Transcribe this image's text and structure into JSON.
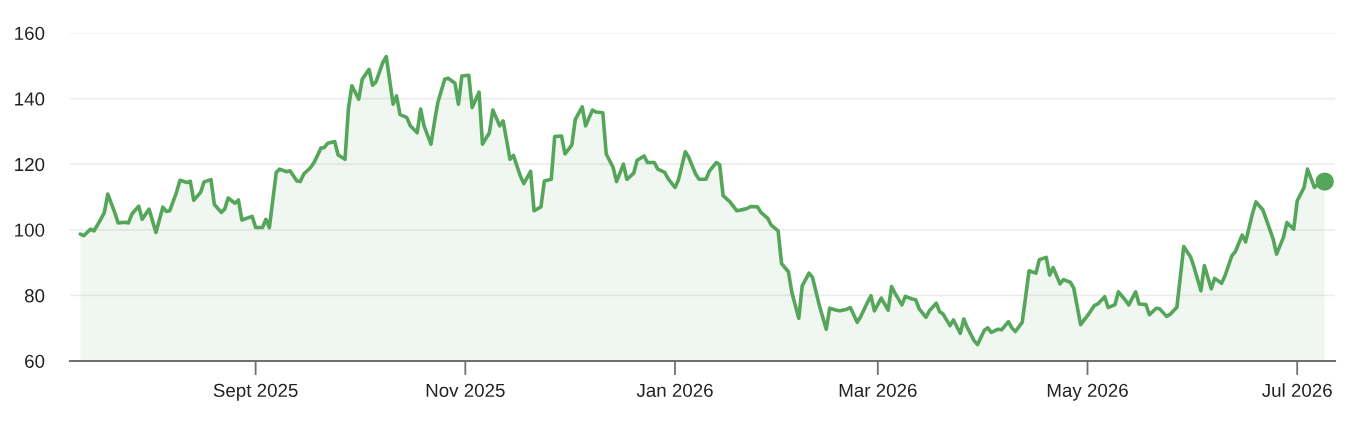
{
  "chart_data": {
    "type": "area",
    "x": [
      "2025-07-12",
      "2025-07-13",
      "2025-07-15",
      "2025-07-16",
      "2025-07-18",
      "2025-07-19",
      "2025-07-20",
      "2025-07-22",
      "2025-07-23",
      "2025-07-25",
      "2025-07-26",
      "2025-07-27",
      "2025-07-29",
      "2025-07-30",
      "2025-08-01",
      "2025-08-03",
      "2025-08-05",
      "2025-08-06",
      "2025-08-07",
      "2025-08-09",
      "2025-08-10",
      "2025-08-12",
      "2025-08-13",
      "2025-08-14",
      "2025-08-16",
      "2025-08-17",
      "2025-08-19",
      "2025-08-20",
      "2025-08-22",
      "2025-08-23",
      "2025-08-24",
      "2025-08-26",
      "2025-08-27",
      "2025-08-28",
      "2025-08-31",
      "2025-09-01",
      "2025-09-03",
      "2025-09-04",
      "2025-09-05",
      "2025-09-07",
      "2025-09-08",
      "2025-09-10",
      "2025-09-11",
      "2025-09-13",
      "2025-09-14",
      "2025-09-15",
      "2025-09-17",
      "2025-09-18",
      "2025-09-20",
      "2025-09-21",
      "2025-09-22",
      "2025-09-24",
      "2025-09-25",
      "2025-09-27",
      "2025-09-28",
      "2025-09-29",
      "2025-10-01",
      "2025-10-02",
      "2025-10-04",
      "2025-10-05",
      "2025-10-06",
      "2025-10-08",
      "2025-10-09",
      "2025-10-11",
      "2025-10-12",
      "2025-10-13",
      "2025-10-15",
      "2025-10-16",
      "2025-10-18",
      "2025-10-19",
      "2025-10-20",
      "2025-10-22",
      "2025-10-23",
      "2025-10-24",
      "2025-10-26",
      "2025-10-27",
      "2025-10-29",
      "2025-10-30",
      "2025-10-31",
      "2025-11-02",
      "2025-11-03",
      "2025-11-05",
      "2025-11-06",
      "2025-11-08",
      "2025-11-09",
      "2025-11-11",
      "2025-11-12",
      "2025-11-14",
      "2025-11-15",
      "2025-11-17",
      "2025-11-18",
      "2025-11-20",
      "2025-11-21",
      "2025-11-23",
      "2025-11-24",
      "2025-11-26",
      "2025-11-27",
      "2025-11-29",
      "2025-11-30",
      "2025-12-02",
      "2025-12-03",
      "2025-12-05",
      "2025-12-06",
      "2025-12-08",
      "2025-12-09",
      "2025-12-11",
      "2025-12-12",
      "2025-12-14",
      "2025-12-15",
      "2025-12-17",
      "2025-12-18",
      "2025-12-20",
      "2025-12-21",
      "2025-12-23",
      "2025-12-24",
      "2025-12-26",
      "2025-12-27",
      "2025-12-29",
      "2025-12-30",
      "2026-01-01",
      "2026-01-02",
      "2026-01-04",
      "2026-01-05",
      "2026-01-07",
      "2026-01-08",
      "2026-01-10",
      "2026-01-11",
      "2026-01-13",
      "2026-01-14",
      "2026-01-15",
      "2026-01-17",
      "2026-01-19",
      "2026-01-20",
      "2026-01-22",
      "2026-01-23",
      "2026-01-25",
      "2026-01-26",
      "2026-01-28",
      "2026-01-29",
      "2026-01-31",
      "2026-02-01",
      "2026-02-03",
      "2026-02-04",
      "2026-02-06",
      "2026-02-07",
      "2026-02-09",
      "2026-02-10",
      "2026-02-12",
      "2026-02-14",
      "2026-02-15",
      "2026-02-17",
      "2026-02-18",
      "2026-02-20",
      "2026-02-21",
      "2026-02-23",
      "2026-02-24",
      "2026-02-26",
      "2026-02-27",
      "2026-02-28",
      "2026-03-02",
      "2026-03-04",
      "2026-03-05",
      "2026-03-06",
      "2026-03-08",
      "2026-03-09",
      "2026-03-11",
      "2026-03-12",
      "2026-03-13",
      "2026-03-15",
      "2026-03-16",
      "2026-03-18",
      "2026-03-19",
      "2026-03-20",
      "2026-03-22",
      "2026-03-23",
      "2026-03-25",
      "2026-03-26",
      "2026-03-27",
      "2026-03-29",
      "2026-03-30",
      "2026-04-01",
      "2026-04-02",
      "2026-04-03",
      "2026-04-05",
      "2026-04-06",
      "2026-04-08",
      "2026-04-09",
      "2026-04-10",
      "2026-04-12",
      "2026-04-13",
      "2026-04-14",
      "2026-04-16",
      "2026-04-17",
      "2026-04-19",
      "2026-04-20",
      "2026-04-21",
      "2026-04-23",
      "2026-04-24",
      "2026-04-26",
      "2026-04-27",
      "2026-04-29",
      "2026-04-30",
      "2026-05-01",
      "2026-05-03",
      "2026-05-04",
      "2026-05-06",
      "2026-05-07",
      "2026-05-09",
      "2026-05-10",
      "2026-05-12",
      "2026-05-13",
      "2026-05-15",
      "2026-05-16",
      "2026-05-18",
      "2026-05-19",
      "2026-05-21",
      "2026-05-22",
      "2026-05-24",
      "2026-05-25",
      "2026-05-27",
      "2026-05-28",
      "2026-05-29",
      "2026-05-31",
      "2026-06-01",
      "2026-06-03",
      "2026-06-04",
      "2026-06-06",
      "2026-06-07",
      "2026-06-09",
      "2026-06-10",
      "2026-06-12",
      "2026-06-13",
      "2026-06-15",
      "2026-06-16",
      "2026-06-18",
      "2026-06-19",
      "2026-06-21",
      "2026-06-22",
      "2026-06-24",
      "2026-06-25",
      "2026-06-27",
      "2026-06-28",
      "2026-06-30",
      "2026-07-01",
      "2026-07-03",
      "2026-07-04",
      "2026-07-06",
      "2026-07-07",
      "2026-07-09"
    ],
    "series": [
      {
        "color": "#55a65a",
        "values": [
          98.7,
          98.2,
          100.2,
          99.7,
          103.3,
          105.3,
          110.9,
          105.3,
          102.1,
          102.3,
          102.1,
          104.8,
          107.2,
          103.2,
          106.3,
          99.2,
          106.9,
          105.6,
          105.8,
          111.5,
          115.1,
          114.4,
          114.8,
          109.0,
          111.4,
          114.6,
          115.3,
          107.7,
          105.3,
          106.3,
          109.7,
          108.1,
          109.1,
          103.0,
          104.1,
          100.7,
          100.7,
          103.2,
          100.7,
          117.5,
          118.5,
          117.7,
          118.0,
          114.9,
          114.7,
          117.0,
          119.0,
          120.5,
          124.9,
          125.1,
          126.4,
          126.9,
          122.8,
          121.5,
          137.0,
          143.9,
          139.8,
          145.9,
          148.9,
          144.1,
          145.1,
          151.0,
          152.8,
          138.3,
          140.8,
          135.2,
          134.2,
          131.7,
          129.6,
          136.8,
          131.7,
          126.1,
          132.7,
          138.8,
          145.9,
          146.2,
          144.7,
          138.3,
          146.9,
          147.1,
          137.3,
          142.0,
          126.1,
          129.6,
          136.5,
          131.7,
          133.2,
          121.5,
          122.7,
          116.4,
          114.1,
          117.8,
          105.8,
          107.0,
          114.9,
          115.4,
          128.4,
          128.6,
          123.1,
          125.9,
          133.7,
          137.5,
          131.7,
          136.5,
          135.9,
          135.7,
          123.1,
          119.0,
          114.7,
          120.0,
          115.4,
          117.3,
          121.2,
          122.5,
          120.5,
          120.5,
          118.5,
          117.5,
          115.6,
          112.9,
          115.2,
          123.8,
          122.1,
          117.0,
          115.4,
          115.4,
          117.9,
          120.5,
          119.8,
          110.4,
          108.5,
          105.8,
          106.0,
          106.5,
          107.1,
          107.0,
          105.3,
          103.5,
          101.4,
          99.7,
          89.7,
          87.2,
          80.9,
          73.0,
          82.9,
          86.8,
          85.5,
          76.9,
          69.7,
          76.1,
          75.5,
          75.3,
          75.8,
          76.3,
          71.8,
          73.5,
          77.9,
          79.9,
          75.3,
          79.2,
          75.5,
          82.7,
          80.7,
          77.1,
          79.7,
          78.9,
          78.7,
          76.0,
          73.3,
          75.3,
          77.6,
          75.0,
          74.3,
          70.8,
          72.5,
          68.4,
          72.8,
          70.3,
          66.2,
          65.0,
          69.4,
          70.1,
          68.7,
          69.7,
          69.5,
          72.0,
          70.1,
          69.0,
          71.8,
          79.6,
          87.5,
          86.8,
          90.9,
          91.6,
          86.2,
          88.5,
          83.5,
          84.8,
          84.0,
          82.2,
          71.1,
          72.5,
          73.8,
          76.9,
          77.4,
          79.6,
          76.3,
          77.2,
          81.1,
          78.6,
          77.1,
          81.1,
          77.4,
          77.2,
          74.1,
          76.1,
          75.9,
          73.6,
          74.2,
          76.4,
          85.6,
          94.9,
          91.7,
          88.6,
          81.4,
          89.1,
          82.0,
          85.2,
          83.7,
          86.0,
          92.1,
          93.3,
          98.4,
          96.3,
          105.0,
          108.5,
          106.1,
          103.2,
          97.2,
          92.6,
          97.7,
          102.2,
          100.2,
          108.8,
          112.9,
          118.5,
          112.9,
          113.9,
          114.7
        ]
      },
      {
        "type": "scatter",
        "color": "#55a65a",
        "x": [
          "2026-07-09"
        ],
        "values": [
          114.7
        ],
        "marker": "circle"
      }
    ],
    "xlim": [
      "2025-07-09",
      "2026-07-12"
    ],
    "xticks": [
      {
        "value": "2025-09-01",
        "label": "Sept 2025"
      },
      {
        "value": "2025-11-01",
        "label": "Nov 2025"
      },
      {
        "value": "2026-01-01",
        "label": "Jan 2026"
      },
      {
        "value": "2026-03-01",
        "label": "Mar 2026"
      },
      {
        "value": "2026-05-01",
        "label": "May 2026"
      },
      {
        "value": "2026-07-01",
        "label": "Jul 2026"
      }
    ],
    "ylim": [
      60,
      160
    ],
    "yticks": [
      60,
      80,
      100,
      120,
      140,
      160
    ],
    "grid": "y",
    "legend": false
  }
}
